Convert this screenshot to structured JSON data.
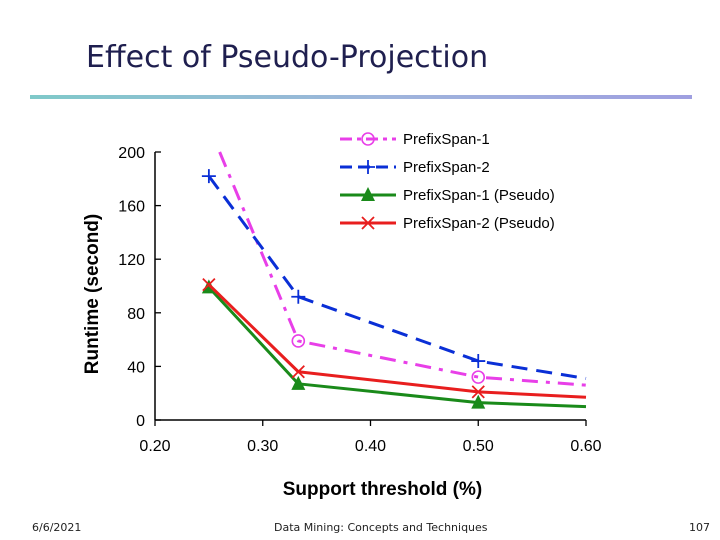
{
  "slide": {
    "title": "Effect of Pseudo-Projection",
    "footer_date": "6/6/2021",
    "footer_center": "Data Mining: Concepts and Techniques",
    "footer_page": "107"
  },
  "colors": {
    "title": "#1f1f4f",
    "series": [
      "#e83fe8",
      "#0a2fd6",
      "#1a8a1a",
      "#e81e1e"
    ]
  },
  "chart_data": {
    "type": "line",
    "title": "",
    "xlabel": "Support threshold (%)",
    "ylabel": "Runtime (second)",
    "xlim": [
      0.2,
      0.6
    ],
    "ylim": [
      0,
      200
    ],
    "xticks": [
      "0.20",
      "0.30",
      "0.40",
      "0.50",
      "0.60"
    ],
    "yticks": [
      "0",
      "40",
      "80",
      "120",
      "160",
      "200"
    ],
    "grid": false,
    "legend_position": "top-right",
    "series": [
      {
        "name": "PrefixSpan-1",
        "marker": "circle",
        "dash": "dashdot",
        "x": [
          0.26,
          0.333,
          0.5,
          0.6
        ],
        "y": [
          200,
          59,
          32,
          26
        ],
        "marker_x": [
          0.333,
          0.5
        ],
        "marker_y": [
          59,
          32
        ]
      },
      {
        "name": "PrefixSpan-2",
        "marker": "plus",
        "dash": "dash",
        "x": [
          0.25,
          0.333,
          0.5,
          0.6
        ],
        "y": [
          182,
          92,
          44,
          31
        ],
        "marker_x": [
          0.25,
          0.333,
          0.5
        ],
        "marker_y": [
          182,
          92,
          44
        ]
      },
      {
        "name": "PrefixSpan-1 (Pseudo)",
        "marker": "triangle",
        "dash": "solid",
        "x": [
          0.25,
          0.333,
          0.5,
          0.6
        ],
        "y": [
          99,
          27,
          13,
          10
        ],
        "marker_x": [
          0.25,
          0.333,
          0.5
        ],
        "marker_y": [
          99,
          27,
          13
        ]
      },
      {
        "name": "PrefixSpan-2 (Pseudo)",
        "marker": "cross",
        "dash": "solid",
        "x": [
          0.25,
          0.333,
          0.5,
          0.6
        ],
        "y": [
          101,
          36,
          21,
          17
        ],
        "marker_x": [
          0.25,
          0.333,
          0.5
        ],
        "marker_y": [
          101,
          36,
          21
        ]
      }
    ]
  }
}
